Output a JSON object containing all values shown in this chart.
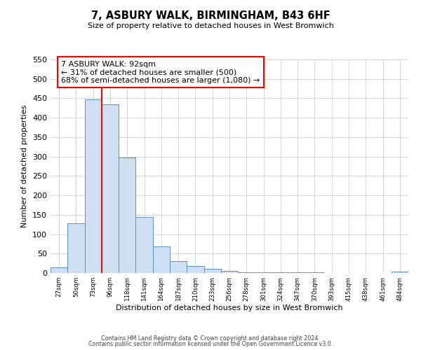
{
  "title": "7, ASBURY WALK, BIRMINGHAM, B43 6HF",
  "subtitle": "Size of property relative to detached houses in West Bromwich",
  "xlabel": "Distribution of detached houses by size in West Bromwich",
  "ylabel": "Number of detached properties",
  "bar_labels": [
    "27sqm",
    "50sqm",
    "73sqm",
    "96sqm",
    "118sqm",
    "141sqm",
    "164sqm",
    "187sqm",
    "210sqm",
    "233sqm",
    "256sqm",
    "278sqm",
    "301sqm",
    "324sqm",
    "347sqm",
    "370sqm",
    "393sqm",
    "415sqm",
    "438sqm",
    "461sqm",
    "484sqm"
  ],
  "bar_values": [
    15,
    128,
    448,
    435,
    298,
    145,
    68,
    30,
    18,
    10,
    6,
    2,
    2,
    1,
    1,
    1,
    0,
    0,
    0,
    0,
    3
  ],
  "bar_color": "#cfe0f3",
  "bar_edge_color": "#5b8ec9",
  "property_line_color": "red",
  "annotation_line1": "7 ASBURY WALK: 92sqm",
  "annotation_line2": "← 31% of detached houses are smaller (500)",
  "annotation_line3": "68% of semi-detached houses are larger (1,080) →",
  "annotation_box_color": "white",
  "annotation_box_edge": "red",
  "ylim": [
    0,
    550
  ],
  "yticks": [
    0,
    50,
    100,
    150,
    200,
    250,
    300,
    350,
    400,
    450,
    500,
    550
  ],
  "footer1": "Contains HM Land Registry data © Crown copyright and database right 2024.",
  "footer2": "Contains public sector information licensed under the Open Government Licence v3.0.",
  "bg_color": "#ffffff",
  "grid_color": "#d0d0d0"
}
